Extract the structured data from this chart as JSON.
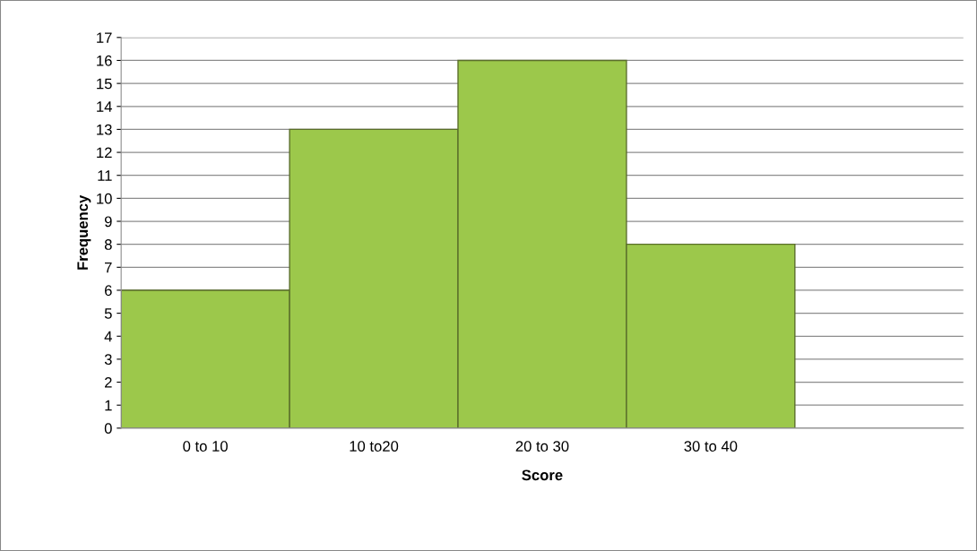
{
  "chart_data": {
    "type": "bar",
    "xlabel": "Score",
    "ylabel": "Frequency",
    "categories": [
      "0 to 10",
      "10 to20",
      "20 to 30",
      "30 to 40",
      null
    ],
    "values": [
      6,
      13,
      16,
      8,
      null
    ],
    "color": "#9cc84b",
    "ylim": [
      0,
      17
    ],
    "yticks": [
      0,
      1,
      2,
      3,
      4,
      5,
      6,
      7,
      8,
      9,
      10,
      11,
      12,
      13,
      14,
      15,
      16,
      17
    ],
    "grid": "y"
  }
}
